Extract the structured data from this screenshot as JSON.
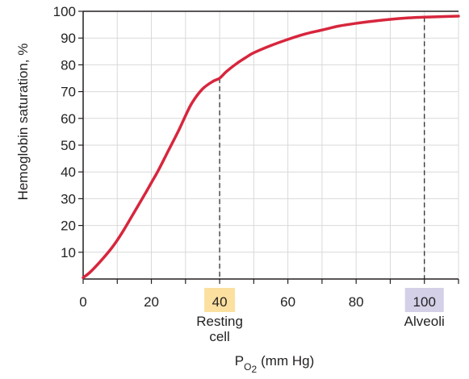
{
  "chart_data": {
    "type": "line",
    "title": "",
    "ylabel": "Hemoglobin saturation, %",
    "xlabel": {
      "base": "P",
      "subscript": "O",
      "subsubscript": "2",
      "unit": "(mm Hg)"
    },
    "xlim": [
      0,
      110
    ],
    "ylim": [
      0,
      100
    ],
    "xticks": [
      0,
      20,
      40,
      60,
      80,
      100
    ],
    "yticks": [
      10,
      20,
      30,
      40,
      50,
      60,
      70,
      80,
      90,
      100
    ],
    "grid": true,
    "series": [
      {
        "color": "#d7263d",
        "x": [
          0,
          2,
          5,
          8,
          10,
          12,
          15,
          18,
          20,
          22,
          25,
          28,
          30,
          32,
          35,
          38,
          40,
          42,
          45,
          48,
          50,
          55,
          60,
          65,
          70,
          75,
          80,
          85,
          90,
          95,
          100,
          105,
          110
        ],
        "y": [
          0.5,
          2.5,
          6.5,
          11,
          14.5,
          18.5,
          25,
          31.5,
          36,
          40.5,
          48,
          55.5,
          61,
          66,
          71,
          73.8,
          75,
          77.5,
          80.5,
          83,
          84.5,
          87.2,
          89.5,
          91.5,
          93,
          94.5,
          95.5,
          96.3,
          97,
          97.5,
          97.8,
          98,
          98.2
        ]
      }
    ],
    "annotations": [
      {
        "x": 40,
        "y": 75,
        "tick_label": "40",
        "text_lines": [
          "Resting",
          "cell"
        ],
        "highlight_color": "#fbe0a0"
      },
      {
        "x": 100,
        "y": 97.8,
        "tick_label": "100",
        "text_lines": [
          "Alveoli"
        ],
        "highlight_color": "#d4d0e8"
      }
    ]
  }
}
